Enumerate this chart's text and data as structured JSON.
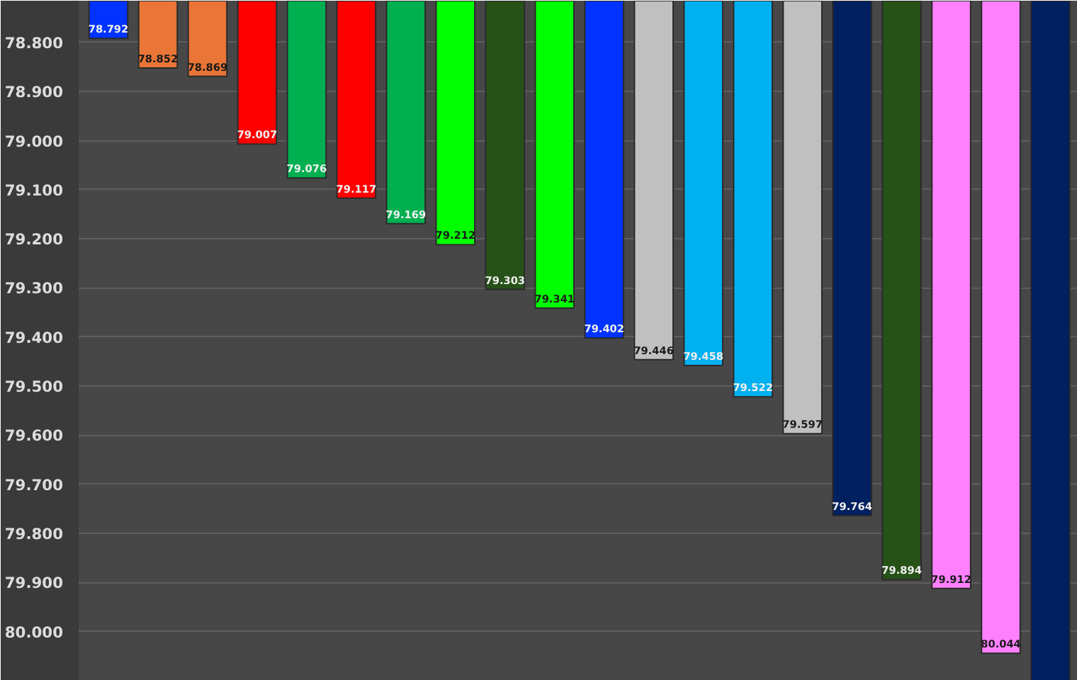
{
  "chart_data": {
    "type": "bar",
    "categories": [
      null,
      null,
      null,
      null,
      null,
      null,
      null,
      null,
      null,
      null,
      null,
      null,
      null,
      null,
      null,
      null,
      null,
      null,
      null,
      null
    ],
    "values": [
      78.792,
      78.852,
      78.869,
      79.007,
      79.076,
      79.117,
      79.169,
      79.212,
      79.303,
      79.341,
      79.402,
      79.446,
      79.458,
      79.522,
      79.597,
      79.764,
      79.894,
      79.912,
      80.044,
      80.1
    ],
    "value_labels": [
      "78.792",
      "78.852",
      "78.869",
      "79.007",
      "79.076",
      "79.117",
      "79.169",
      "79.212",
      "79.303",
      "79.341",
      "79.402",
      "79.446",
      "79.458",
      "79.522",
      "79.597",
      "79.764",
      "79.894",
      "79.912",
      "80.044",
      null
    ],
    "colors": [
      "#0033ff",
      "#e97536",
      "#e97536",
      "#ff0000",
      "#00b050",
      "#ff0000",
      "#00b050",
      "#00ff00",
      "#265218",
      "#00ff00",
      "#0033ff",
      "#c0c0c0",
      "#00b0f0",
      "#00b0f0",
      "#c0c0c0",
      "#002060",
      "#265218",
      "#ff80ff",
      "#ff80ff",
      "#002060"
    ],
    "ylim": [
      80.1,
      78.715
    ],
    "yticks": [
      {
        "value": 78.8,
        "label": "78.800"
      },
      {
        "value": 78.9,
        "label": "78.900"
      },
      {
        "value": 79.0,
        "label": "79.000"
      },
      {
        "value": 79.1,
        "label": "79.100"
      },
      {
        "value": 79.2,
        "label": "79.200"
      },
      {
        "value": 79.3,
        "label": "79.300"
      },
      {
        "value": 79.4,
        "label": "79.400"
      },
      {
        "value": 79.5,
        "label": "79.500"
      },
      {
        "value": 79.6,
        "label": "79.600"
      },
      {
        "value": 79.7,
        "label": "79.700"
      },
      {
        "value": 79.8,
        "label": "79.800"
      },
      {
        "value": 79.9,
        "label": "79.900"
      },
      {
        "value": 80.0,
        "label": "80.000"
      }
    ],
    "grid": "y",
    "tick_labels": "y"
  }
}
